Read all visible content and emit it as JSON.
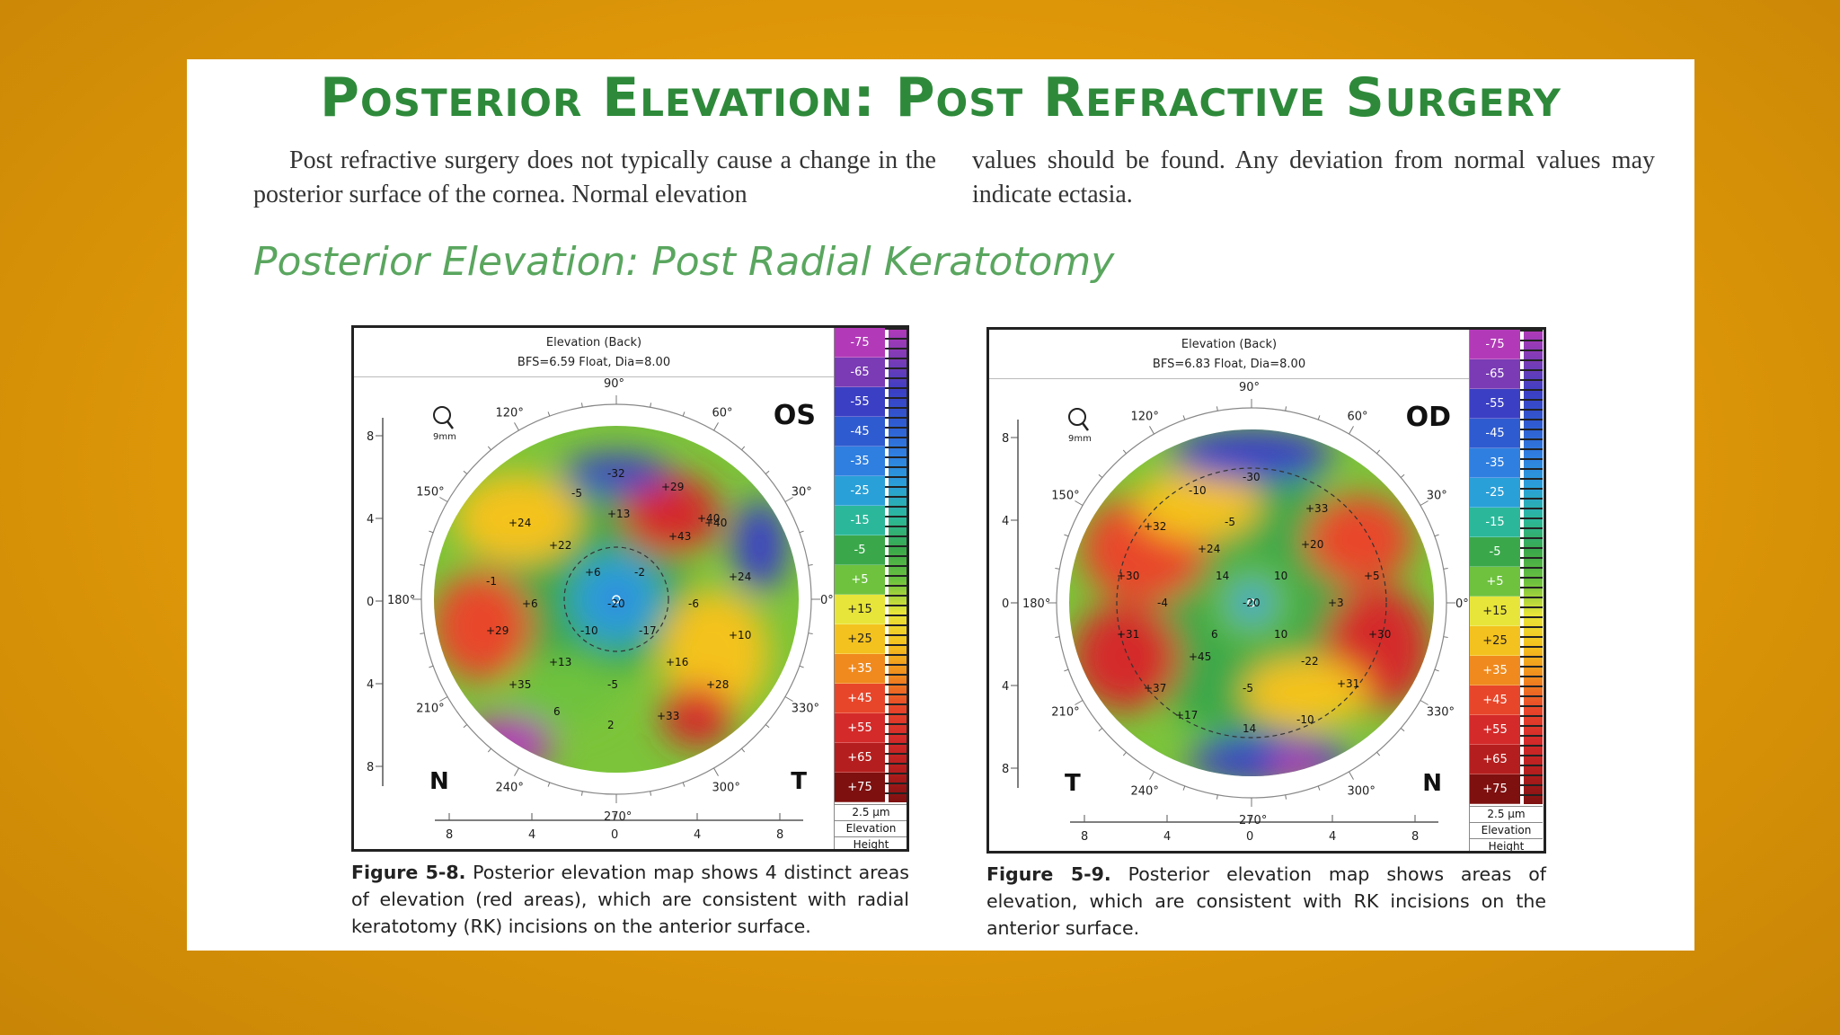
{
  "title": "Posterior Elevation: Post Refractive Surgery",
  "intro": {
    "col1": "Post refractive surgery does not typically cause a change in the posterior surface of the cornea. Normal elevation",
    "col2": "values should be found. Any deviation from normal values may indicate ectasia."
  },
  "subtitle": "Posterior Elevation: Post Radial Keratotomy",
  "figures": [
    {
      "map_title": "Elevation (Back)",
      "map_subtitle": "BFS=6.59 Float, Dia=8.00",
      "eye": "OS",
      "left_corner": "N",
      "right_corner": "T",
      "zoom_label": "9mm",
      "caption_num": "Figure 5-8.",
      "caption_text": " Posterior elevation map shows 4 distinct areas of elevation (red areas), which are consistent with radial keratotomy (RK) incisions on the anterior surface.",
      "values": [
        "-32",
        "+29",
        "+13",
        "+24",
        "+22",
        "-5",
        "+40",
        "+43",
        "-1",
        "+6",
        "+24",
        "+6",
        "-20",
        "-6",
        "+10",
        "-10",
        "-17",
        "+29",
        "+13",
        "+16",
        "+35",
        "-5",
        "+28",
        "6",
        "+33",
        "2",
        "-2",
        "+40"
      ]
    },
    {
      "map_title": "Elevation (Back)",
      "map_subtitle": "BFS=6.83 Float, Dia=8.00",
      "eye": "OD",
      "left_corner": "T",
      "right_corner": "N",
      "zoom_label": "9mm",
      "caption_num": "Figure 5-9.",
      "caption_text": " Posterior elevation map shows areas of elevation, which are consistent with RK incisions on the anterior surface.",
      "values": [
        "-10",
        "-30",
        "+33",
        "+32",
        "-5",
        "+24",
        "+20",
        "+30",
        "14",
        "10",
        "+5",
        "-4",
        "-20",
        "+3",
        "+31",
        "6",
        "10",
        "+30",
        "+45",
        "-22",
        "+37",
        "-5",
        "+31",
        "+17",
        "14",
        "-10"
      ]
    }
  ],
  "scale": {
    "labels": [
      "-75",
      "-65",
      "-55",
      "-45",
      "-35",
      "-25",
      "-15",
      "-5",
      "+5",
      "+15",
      "+25",
      "+35",
      "+45",
      "+55",
      "+65",
      "+75"
    ],
    "colors": [
      "#b23ab8",
      "#7a3bb5",
      "#3b3fc4",
      "#2f5bd0",
      "#2f7fe0",
      "#2aa0d8",
      "#2bb89a",
      "#3aa84a",
      "#6ec23e",
      "#e8e53a",
      "#f4c21e",
      "#f08a1e",
      "#e8462a",
      "#d42a2a",
      "#b51e1e",
      "#7e1010"
    ],
    "unit": "2.5 µm",
    "foot1": "Elevation",
    "foot2": "Height"
  },
  "axes": {
    "y_ticks": [
      "8",
      "4",
      "0",
      "4",
      "8"
    ],
    "x_ticks": [
      "8",
      "4",
      "0",
      "4",
      "8"
    ],
    "degrees": [
      "90°",
      "120°",
      "60°",
      "150°",
      "30°",
      "180°",
      "0°",
      "210°",
      "330°",
      "240°",
      "300°",
      "270°"
    ]
  }
}
